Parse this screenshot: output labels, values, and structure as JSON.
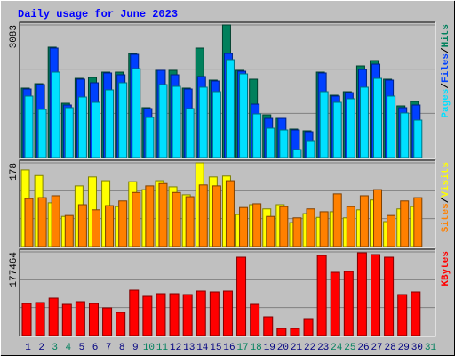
{
  "chart_data": [
    {
      "type": "bar",
      "title": "Daily usage for June 2023",
      "categories": [
        "1",
        "2",
        "3",
        "4",
        "5",
        "6",
        "7",
        "8",
        "9",
        "10",
        "11",
        "12",
        "13",
        "14",
        "15",
        "16",
        "17",
        "18",
        "19",
        "20",
        "21",
        "22",
        "23",
        "24",
        "25",
        "26",
        "27",
        "28",
        "29",
        "30",
        "31"
      ],
      "highlight_indices": [
        2,
        3,
        9,
        10,
        16,
        17,
        23,
        24,
        30
      ],
      "highlight_color": "#00805C",
      "category_color": "#000080",
      "legend_separator": "/",
      "grid_divisions": 3,
      "ylim": [
        0,
        3083
      ],
      "yticks": [
        3083
      ],
      "series": [
        {
          "name": "Hits",
          "color": "#00805C",
          "values": [
            1614,
            1717,
            2566,
            1262,
            1841,
            1862,
            1986,
            1986,
            2421,
            1159,
            2028,
            2028,
            1614,
            2545,
            1800,
            3083,
            2028,
            1821,
            993,
            910,
            662,
            621,
            1986,
            1448,
            1531,
            2131,
            2255,
            1821,
            1200,
            1304,
            null
          ]
        },
        {
          "name": "Files",
          "color": "#0040FF",
          "values": [
            1593,
            1697,
            2545,
            1221,
            1821,
            1738,
            1966,
            1924,
            2400,
            1138,
            2028,
            1924,
            1593,
            1883,
            1779,
            2421,
            2007,
            1241,
            910,
            910,
            641,
            600,
            1966,
            1428,
            1510,
            2048,
            2172,
            1800,
            1159,
            1221,
            null
          ]
        },
        {
          "name": "Pages",
          "color": "#00E0FF",
          "values": [
            1428,
            1117,
            1986,
            1159,
            1407,
            1283,
            1573,
            1738,
            2069,
            931,
            1697,
            1655,
            1138,
            1635,
            1531,
            2276,
            1945,
            1014,
            683,
            641,
            186,
            393,
            1531,
            1283,
            1366,
            1635,
            1841,
            1428,
            1035,
            869,
            null
          ]
        }
      ]
    },
    {
      "type": "bar",
      "legend_separator": "/",
      "grid_divisions": 3,
      "ylim": [
        0,
        178
      ],
      "yticks": [
        178
      ],
      "series": [
        {
          "name": "Visits",
          "color": "#FFFF00",
          "values": [
            163,
            151,
            93,
            64,
            129,
            148,
            140,
            85,
            138,
            121,
            140,
            127,
            110,
            178,
            148,
            150,
            68,
            89,
            80,
            89,
            51,
            70,
            62,
            74,
            61,
            78,
            99,
            53,
            80,
            85,
            null
          ]
        },
        {
          "name": "Sites",
          "color": "#FF8000",
          "values": [
            102,
            104,
            108,
            66,
            89,
            78,
            87,
            97,
            115,
            129,
            134,
            115,
            106,
            131,
            129,
            140,
            83,
            91,
            64,
            85,
            61,
            80,
            74,
            112,
            85,
            108,
            121,
            66,
            97,
            104,
            null
          ]
        }
      ]
    },
    {
      "type": "bar",
      "grid_divisions": 3,
      "ylim": [
        0,
        177464
      ],
      "yticks": [
        177464
      ],
      "series": [
        {
          "name": "KBytes",
          "color": "#FF0000",
          "values": [
            67964,
            69852,
            79292,
            66076,
            71740,
            67964,
            58525,
            49086,
            96284,
            83068,
            88732,
            88732,
            86843,
            94396,
            92508,
            94396,
            166136,
            66076,
            39646,
            15103,
            15103,
            35870,
            169912,
            134042,
            135929,
            175576,
            171800,
            166136,
            86843,
            92508,
            null
          ]
        }
      ]
    }
  ]
}
